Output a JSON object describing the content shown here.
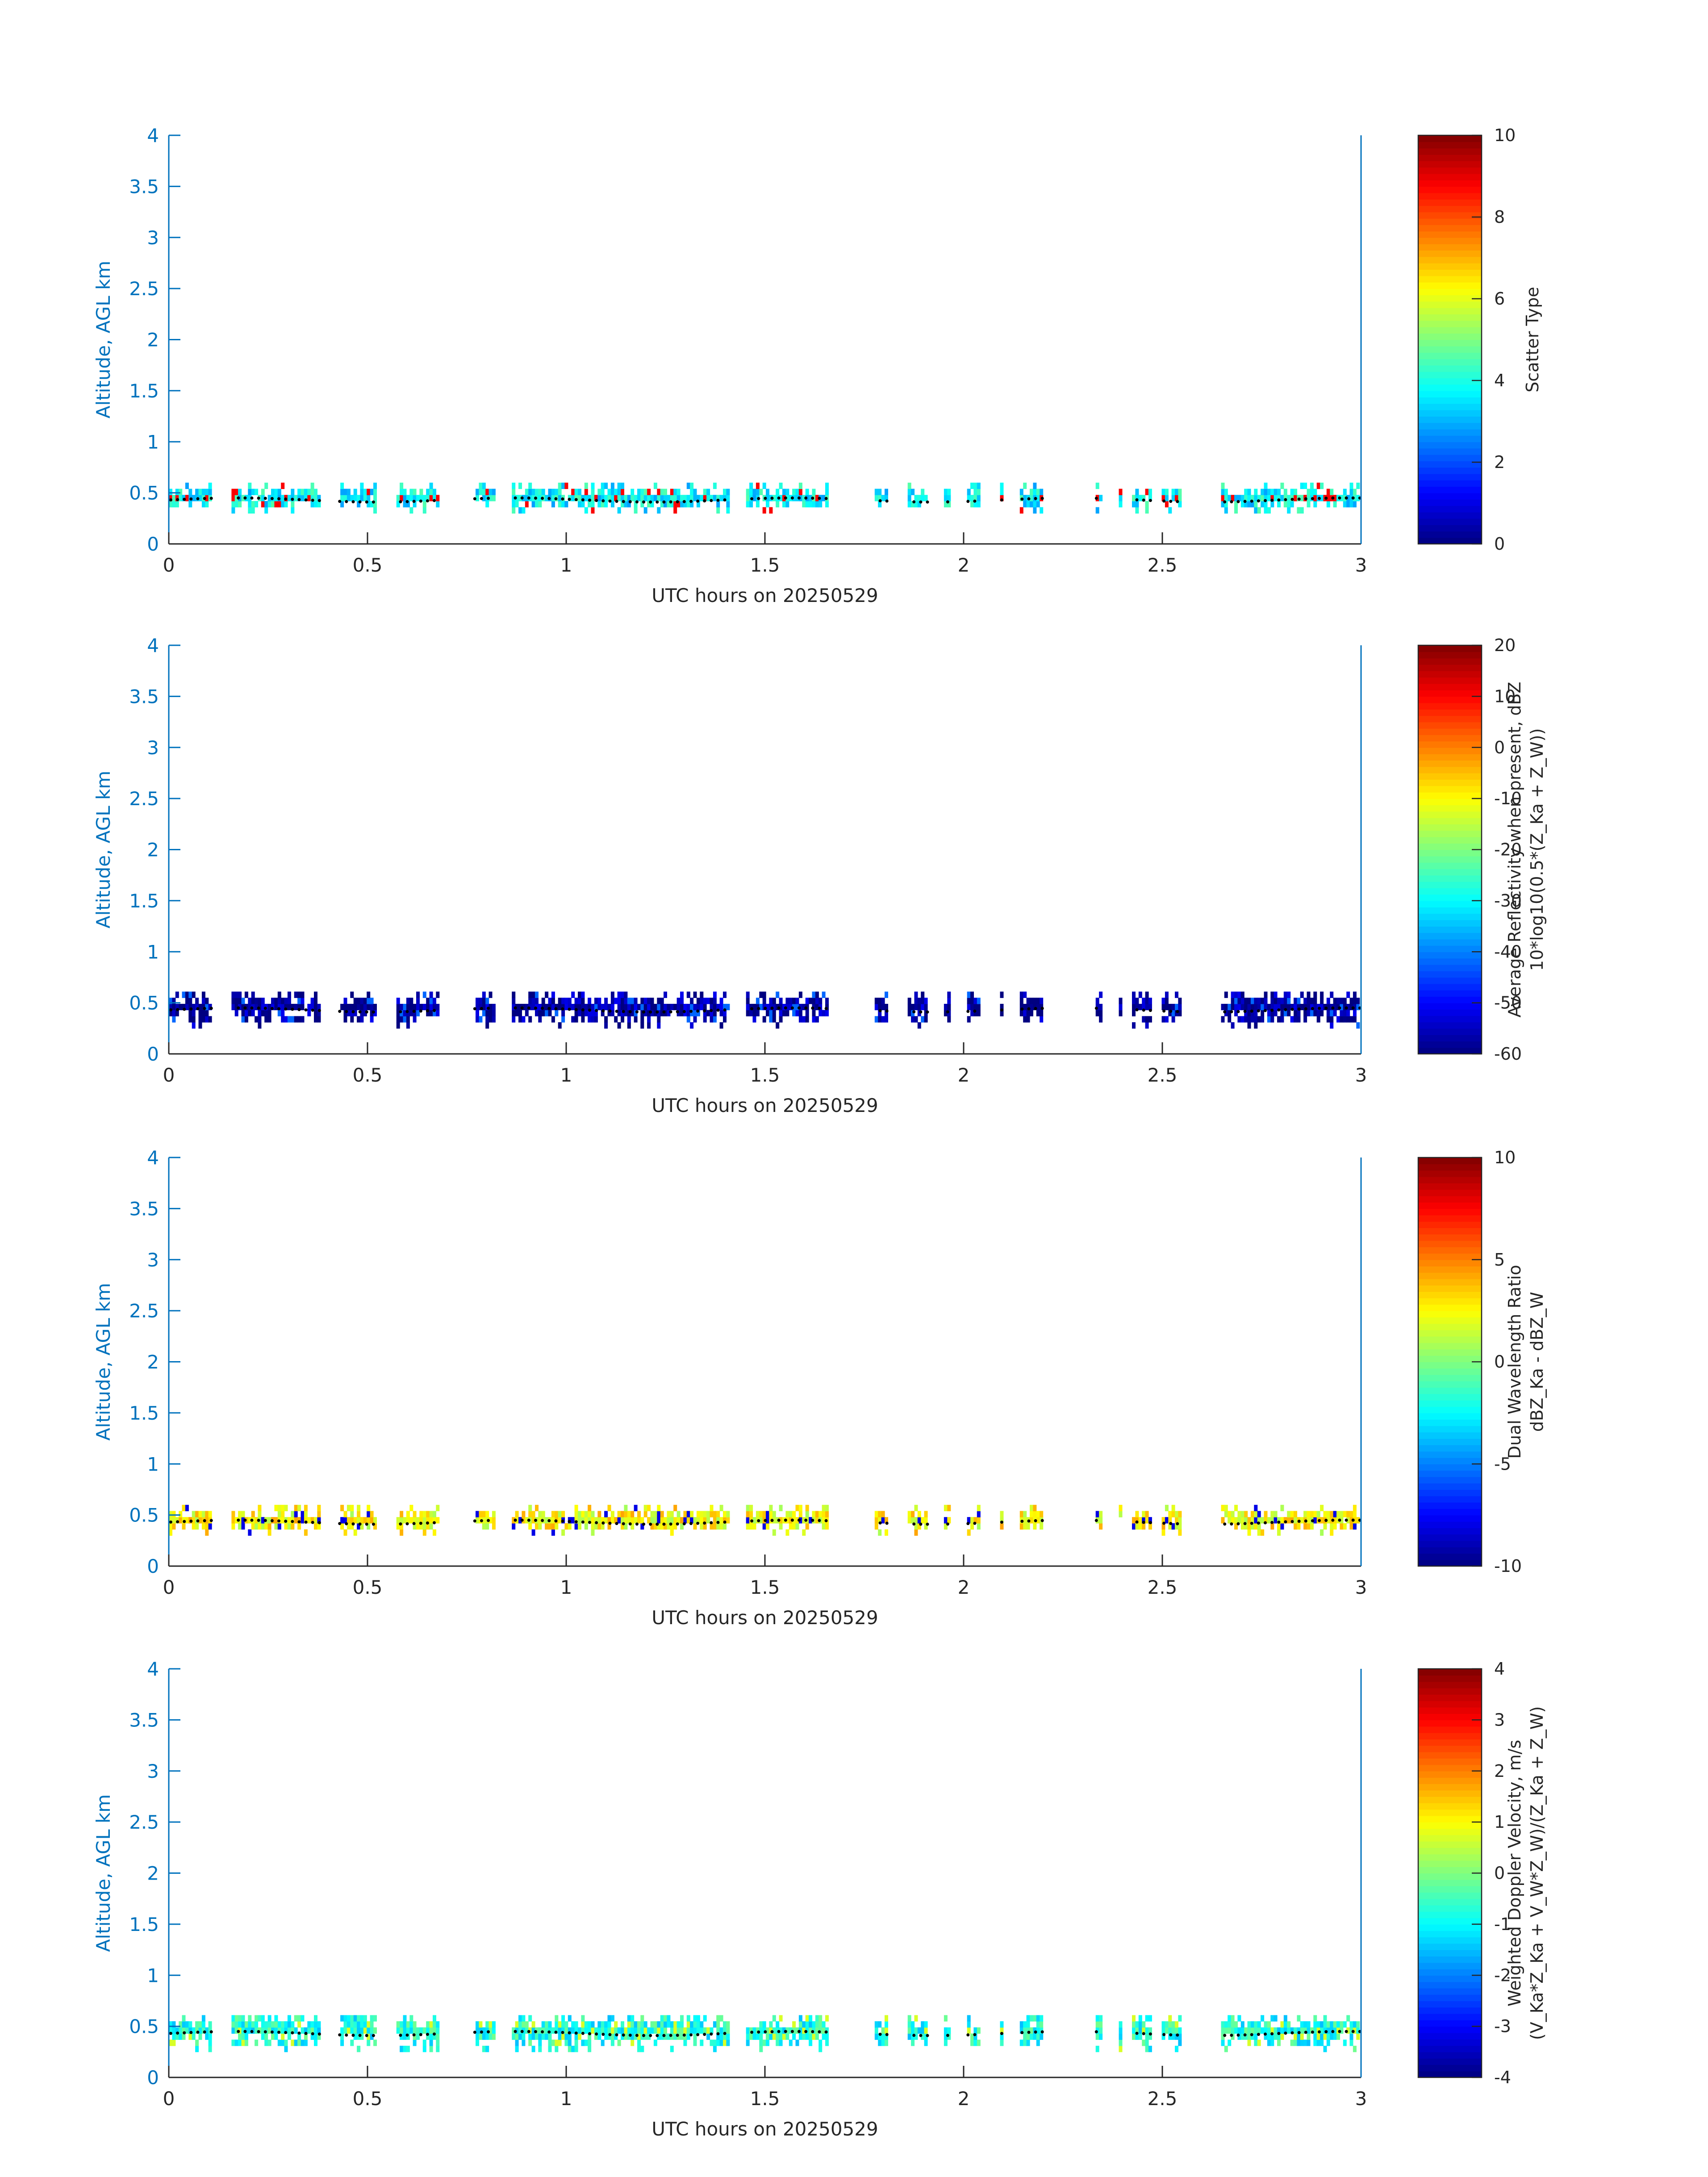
{
  "figure": {
    "background": "#ffffff",
    "axis_color": "#0072bd",
    "text_color": "#262626",
    "marker_color": "#000000"
  },
  "chart_data": [
    {
      "type": "heatmap",
      "name": "scatter-type",
      "xlabel": "UTC hours on 20250529",
      "ylabel": "Altitude, AGL km",
      "xlim": [
        0,
        3
      ],
      "ylim": [
        0,
        4
      ],
      "xticks": [
        "0",
        "0.5",
        "1",
        "1.5",
        "2",
        "2.5",
        "3"
      ],
      "yticks": [
        "0",
        "0.5",
        "1",
        "1.5",
        "2",
        "2.5",
        "3",
        "3.5",
        "4"
      ],
      "colorbar": {
        "label_lines": [
          "Scatter Type"
        ],
        "range": [
          0,
          10
        ],
        "ticks": [
          "0",
          "2",
          "4",
          "6",
          "8",
          "10"
        ],
        "colormap": "jet"
      },
      "layer_range_km": [
        0.3,
        0.55
      ],
      "typical_value": 3.7,
      "highlighted_value": 8.8
    },
    {
      "type": "heatmap",
      "name": "average-reflectivity",
      "xlabel": "UTC hours on 20250529",
      "ylabel": "Altitude, AGL km",
      "xlim": [
        0,
        3
      ],
      "ylim": [
        0,
        4
      ],
      "xticks": [
        "0",
        "0.5",
        "1",
        "1.5",
        "2",
        "2.5",
        "3"
      ],
      "yticks": [
        "0",
        "0.5",
        "1",
        "1.5",
        "2",
        "2.5",
        "3",
        "3.5",
        "4"
      ],
      "colorbar": {
        "label_lines": [
          "Average Reflectivity when present, dBZ",
          "10*log10(0.5*(Z_Ka + Z_W))"
        ],
        "range": [
          -60,
          20
        ],
        "ticks": [
          "-60",
          "-50",
          "-40",
          "-30",
          "-20",
          "-10",
          "0",
          "10",
          "20"
        ],
        "colormap": "jet"
      },
      "layer_range_km": [
        0.25,
        0.6
      ],
      "typical_value": -58,
      "highlighted_value": -42
    },
    {
      "type": "heatmap",
      "name": "dual-wavelength-ratio",
      "xlabel": "UTC hours on 20250529",
      "ylabel": "Altitude, AGL km",
      "xlim": [
        0,
        3
      ],
      "ylim": [
        0,
        4
      ],
      "xticks": [
        "0",
        "0.5",
        "1",
        "1.5",
        "2",
        "2.5",
        "3"
      ],
      "yticks": [
        "0",
        "0.5",
        "1",
        "1.5",
        "2",
        "2.5",
        "3",
        "3.5",
        "4"
      ],
      "colorbar": {
        "label_lines": [
          "Dual Wavelength Ratio",
          "dBZ_Ka - dBZ_W"
        ],
        "range": [
          -10,
          10
        ],
        "ticks": [
          "-10",
          "-5",
          "0",
          "5",
          "10"
        ],
        "colormap": "jet"
      },
      "layer_range_km": [
        0.3,
        0.55
      ],
      "typical_value": 2.5,
      "highlighted_value": -8
    },
    {
      "type": "heatmap",
      "name": "weighted-doppler-velocity",
      "xlabel": "UTC hours on 20250529",
      "ylabel": "Altitude, AGL km",
      "xlim": [
        0,
        3
      ],
      "ylim": [
        0,
        4
      ],
      "xticks": [
        "0",
        "0.5",
        "1",
        "1.5",
        "2",
        "2.5",
        "3"
      ],
      "yticks": [
        "0",
        "0.5",
        "1",
        "1.5",
        "2",
        "2.5",
        "3",
        "3.5",
        "4"
      ],
      "colorbar": {
        "label_lines": [
          "Weighted Doppler Velocity, m/s",
          "(V_Ka*Z_Ka + V_W*Z_W)/(Z_Ka + Z_W)"
        ],
        "range": [
          -4,
          4
        ],
        "ticks": [
          "-4",
          "-3",
          "-2",
          "-1",
          "0",
          "1",
          "2",
          "3",
          "4"
        ],
        "colormap": "jet"
      },
      "layer_range_km": [
        0.25,
        0.6
      ],
      "typical_value": -0.8,
      "highlighted_value": 0.7
    }
  ],
  "data_presence_hours": [
    [
      0.0,
      0.11
    ],
    [
      0.16,
      0.38
    ],
    [
      0.43,
      0.52
    ],
    [
      0.57,
      0.68
    ],
    [
      0.77,
      0.82
    ],
    [
      0.86,
      1.41
    ],
    [
      1.45,
      1.66
    ],
    [
      1.78,
      1.81
    ],
    [
      1.86,
      1.91
    ],
    [
      1.95,
      1.97
    ],
    [
      2.01,
      2.04
    ],
    [
      2.09,
      2.1
    ],
    [
      2.14,
      2.2
    ],
    [
      2.33,
      2.35
    ],
    [
      2.39,
      2.4
    ],
    [
      2.42,
      2.47
    ],
    [
      2.5,
      2.55
    ],
    [
      2.65,
      3.0
    ]
  ]
}
